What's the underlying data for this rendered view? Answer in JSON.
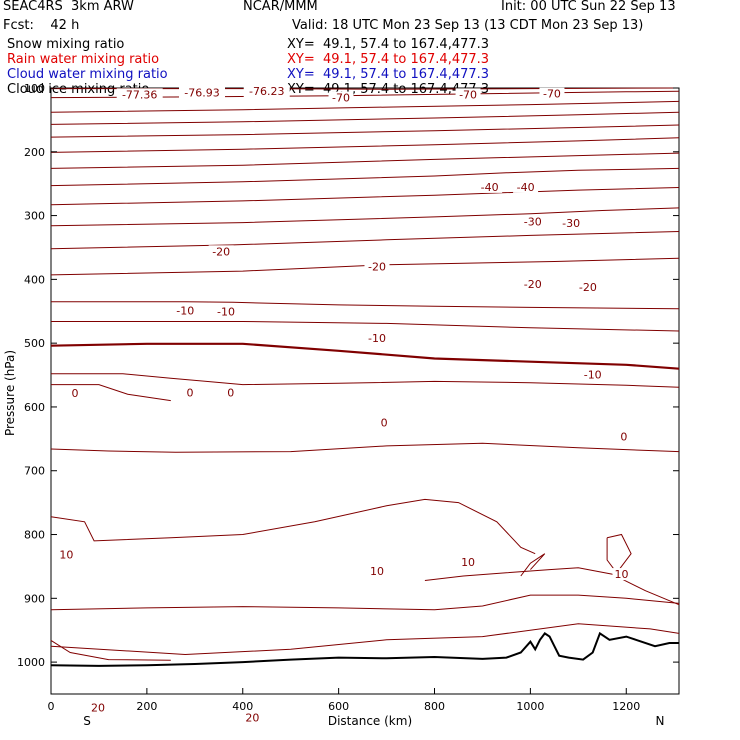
{
  "header": {
    "model": "SEAC4RS  3km ARW",
    "org": "NCAR/MMM",
    "init": "Init: 00 UTC Sun 22 Sep 13",
    "fcst": "Fcst:    42 h",
    "valid": "Valid: 18 UTC Mon 23 Sep 13 (13 CDT Mon 23 Sep 13)"
  },
  "legend": [
    {
      "label": "Snow mixing ratio",
      "xy": "XY=  49.1, 57.4 to 167.4,477.3",
      "color": "#000000"
    },
    {
      "label": "Rain water mixing ratio",
      "xy": "XY=  49.1, 57.4 to 167.4,477.3",
      "color": "#e00000"
    },
    {
      "label": "Cloud water mixing ratio",
      "xy": "XY=  49.1, 57.4 to 167.4,477.3",
      "color": "#1010c0"
    },
    {
      "label": "Cloud ice mixing ratio",
      "xy": "XY=  49.1, 57.4 to 167.4,477.3",
      "color": "#000000"
    }
  ],
  "chart_data": {
    "type": "line",
    "xlabel": "Distance (km)",
    "ylabel": "Pressure (hPa)",
    "xlim": [
      0,
      1310
    ],
    "ylim": [
      1050,
      100
    ],
    "x_ticks": [
      0,
      200,
      400,
      600,
      800,
      1000,
      1200
    ],
    "y_ticks": [
      100,
      200,
      300,
      400,
      500,
      600,
      700,
      800,
      900,
      1000
    ],
    "y_tick_labels": [
      "100",
      "200",
      "300",
      "400",
      "500",
      "600",
      "700",
      "800",
      "900",
      "1000"
    ],
    "end_labels": {
      "left": "S",
      "right": "N"
    },
    "colors": {
      "temperature": "#800000",
      "terrain": "#000000"
    },
    "isotherm_labels": [
      {
        "text": "-77.36",
        "x": 185,
        "y": 110
      },
      {
        "text": "-76.93",
        "x": 315,
        "y": 107
      },
      {
        "text": "-76.23",
        "x": 450,
        "y": 105
      },
      {
        "text": "-70",
        "x": 605,
        "y": 115
      },
      {
        "text": "-70",
        "x": 870,
        "y": 110
      },
      {
        "text": "-70",
        "x": 1045,
        "y": 109
      },
      {
        "text": "-40",
        "x": 915,
        "y": 255
      },
      {
        "text": "-40",
        "x": 990,
        "y": 255
      },
      {
        "text": "-30",
        "x": 1005,
        "y": 309
      },
      {
        "text": "-30",
        "x": 1085,
        "y": 312
      },
      {
        "text": "-20",
        "x": 355,
        "y": 356
      },
      {
        "text": "-20",
        "x": 680,
        "y": 380
      },
      {
        "text": "-20",
        "x": 1005,
        "y": 407
      },
      {
        "text": "-20",
        "x": 1120,
        "y": 412
      },
      {
        "text": "-10",
        "x": 280,
        "y": 449
      },
      {
        "text": "-10",
        "x": 365,
        "y": 450
      },
      {
        "text": "-10",
        "x": 680,
        "y": 492
      },
      {
        "text": "-10",
        "x": 1130,
        "y": 549
      },
      {
        "text": "0",
        "x": 50,
        "y": 578
      },
      {
        "text": "0",
        "x": 290,
        "y": 577
      },
      {
        "text": "0",
        "x": 375,
        "y": 577
      },
      {
        "text": "0",
        "x": 695,
        "y": 624
      },
      {
        "text": "0",
        "x": 1195,
        "y": 646
      },
      {
        "text": "10",
        "x": 32,
        "y": 831
      },
      {
        "text": "10",
        "x": 680,
        "y": 857
      },
      {
        "text": "10",
        "x": 870,
        "y": 843
      },
      {
        "text": "10",
        "x": 1190,
        "y": 862
      },
      {
        "text": "20",
        "x": 98,
        "y": 1071
      },
      {
        "text": "20",
        "x": 420,
        "y": 1087
      }
    ],
    "isotherms": [
      {
        "label": "-77",
        "points": [
          [
            0,
            101
          ],
          [
            400,
            101
          ],
          [
            700,
            102
          ],
          [
            1000,
            101
          ],
          [
            1310,
            100
          ]
        ]
      },
      {
        "label": "-70",
        "points": [
          [
            0,
            115
          ],
          [
            300,
            114
          ],
          [
            600,
            112
          ],
          [
            900,
            109
          ],
          [
            1200,
            106
          ],
          [
            1310,
            105
          ]
        ]
      },
      {
        "label": "",
        "points": [
          [
            0,
            138
          ],
          [
            400,
            134
          ],
          [
            700,
            130
          ],
          [
            1000,
            126
          ],
          [
            1310,
            121
          ]
        ]
      },
      {
        "label": "",
        "points": [
          [
            0,
            157
          ],
          [
            400,
            153
          ],
          [
            800,
            147
          ],
          [
            1100,
            142
          ],
          [
            1310,
            138
          ]
        ]
      },
      {
        "label": "",
        "points": [
          [
            0,
            177
          ],
          [
            400,
            173
          ],
          [
            800,
            167
          ],
          [
            1100,
            162
          ],
          [
            1310,
            158
          ]
        ]
      },
      {
        "label": "",
        "points": [
          [
            0,
            201
          ],
          [
            400,
            196
          ],
          [
            800,
            189
          ],
          [
            1100,
            183
          ],
          [
            1310,
            178
          ]
        ]
      },
      {
        "label": "",
        "points": [
          [
            0,
            226
          ],
          [
            400,
            221
          ],
          [
            800,
            212
          ],
          [
            1100,
            206
          ],
          [
            1310,
            202
          ]
        ]
      },
      {
        "label": "-40",
        "points": [
          [
            0,
            253
          ],
          [
            400,
            247
          ],
          [
            800,
            238
          ],
          [
            950,
            233
          ],
          [
            1100,
            229
          ],
          [
            1310,
            226
          ]
        ]
      },
      {
        "label": "",
        "points": [
          [
            0,
            283
          ],
          [
            400,
            277
          ],
          [
            800,
            268
          ],
          [
            1100,
            260
          ],
          [
            1310,
            256
          ]
        ]
      },
      {
        "label": "-30",
        "points": [
          [
            0,
            316
          ],
          [
            400,
            311
          ],
          [
            800,
            302
          ],
          [
            1000,
            297
          ],
          [
            1150,
            292
          ],
          [
            1310,
            288
          ]
        ]
      },
      {
        "label": "-20",
        "points": [
          [
            0,
            352
          ],
          [
            380,
            346
          ],
          [
            700,
            338
          ],
          [
            1000,
            331
          ],
          [
            1310,
            325
          ]
        ]
      },
      {
        "label": "-20",
        "points": [
          [
            0,
            393
          ],
          [
            400,
            387
          ],
          [
            700,
            377
          ],
          [
            1050,
            372
          ],
          [
            1310,
            367
          ]
        ]
      },
      {
        "label": "-10",
        "points": [
          [
            0,
            435
          ],
          [
            280,
            435
          ],
          [
            380,
            436
          ],
          [
            600,
            440
          ],
          [
            800,
            442
          ],
          [
            1000,
            444
          ],
          [
            1310,
            446
          ]
        ]
      },
      {
        "label": "-10",
        "points": [
          [
            0,
            466
          ],
          [
            400,
            466
          ],
          [
            700,
            469
          ],
          [
            1000,
            476
          ],
          [
            1310,
            481
          ]
        ]
      },
      {
        "label": "0",
        "bold": true,
        "points": [
          [
            0,
            504
          ],
          [
            200,
            501
          ],
          [
            400,
            501
          ],
          [
            600,
            512
          ],
          [
            800,
            524
          ],
          [
            1000,
            529
          ],
          [
            1200,
            534
          ],
          [
            1310,
            540
          ]
        ]
      },
      {
        "label": "",
        "points": [
          [
            0,
            548
          ],
          [
            150,
            548
          ],
          [
            250,
            555
          ],
          [
            400,
            565
          ],
          [
            600,
            563
          ],
          [
            800,
            560
          ],
          [
            1000,
            562
          ],
          [
            1200,
            566
          ],
          [
            1310,
            569
          ]
        ]
      },
      {
        "label": "10",
        "points": [
          [
            0,
            666
          ],
          [
            120,
            669
          ],
          [
            260,
            671
          ],
          [
            500,
            670
          ],
          [
            700,
            661
          ],
          [
            900,
            657
          ],
          [
            1100,
            664
          ],
          [
            1310,
            670
          ]
        ]
      },
      {
        "label": "",
        "points": [
          [
            0,
            772
          ],
          [
            70,
            780
          ],
          [
            90,
            810
          ],
          [
            250,
            805
          ],
          [
            400,
            800
          ],
          [
            550,
            780
          ],
          [
            700,
            755
          ],
          [
            780,
            745
          ],
          [
            850,
            750
          ],
          [
            930,
            780
          ],
          [
            980,
            820
          ],
          [
            1010,
            830
          ]
        ]
      },
      {
        "label": "",
        "points": [
          [
            1000,
            855
          ],
          [
            1030,
            830
          ],
          [
            1000,
            845
          ],
          [
            980,
            865
          ]
        ]
      },
      {
        "label": "",
        "points": [
          [
            1160,
            805
          ],
          [
            1190,
            800
          ],
          [
            1210,
            830
          ],
          [
            1180,
            860
          ],
          [
            1160,
            840
          ],
          [
            1160,
            805
          ]
        ]
      },
      {
        "label": "",
        "points": [
          [
            780,
            872
          ],
          [
            860,
            865
          ],
          [
            950,
            860
          ],
          [
            1040,
            855
          ],
          [
            1100,
            852
          ],
          [
            1170,
            862
          ],
          [
            1240,
            888
          ],
          [
            1310,
            910
          ]
        ]
      },
      {
        "label": "20",
        "points": [
          [
            0,
            918
          ],
          [
            200,
            915
          ],
          [
            400,
            913
          ],
          [
            600,
            915
          ],
          [
            800,
            918
          ],
          [
            900,
            912
          ],
          [
            1000,
            895
          ],
          [
            1100,
            895
          ],
          [
            1200,
            900
          ],
          [
            1310,
            908
          ]
        ]
      },
      {
        "label": "",
        "points": [
          [
            0,
            918
          ],
          [
            0,
            918
          ]
        ]
      },
      {
        "label": "20",
        "points": [
          [
            0,
            975
          ],
          [
            280,
            988
          ],
          [
            500,
            980
          ],
          [
            700,
            965
          ],
          [
            900,
            960
          ],
          [
            1100,
            940
          ],
          [
            1250,
            948
          ],
          [
            1310,
            955
          ]
        ]
      }
    ],
    "extra_isotherms_left": [
      {
        "label": "",
        "points": [
          [
            0,
            565
          ],
          [
            100,
            565
          ],
          [
            160,
            580
          ],
          [
            250,
            590
          ]
        ]
      },
      {
        "label": "",
        "points": [
          [
            0,
            966
          ],
          [
            40,
            985
          ],
          [
            120,
            996
          ],
          [
            250,
            997
          ]
        ]
      }
    ],
    "terrain": [
      [
        0,
        1005
      ],
      [
        100,
        1006
      ],
      [
        200,
        1005
      ],
      [
        300,
        1003
      ],
      [
        400,
        1000
      ],
      [
        500,
        996
      ],
      [
        600,
        993
      ],
      [
        700,
        994
      ],
      [
        800,
        992
      ],
      [
        900,
        995
      ],
      [
        950,
        993
      ],
      [
        980,
        985
      ],
      [
        1000,
        968
      ],
      [
        1010,
        980
      ],
      [
        1020,
        965
      ],
      [
        1030,
        955
      ],
      [
        1040,
        960
      ],
      [
        1050,
        975
      ],
      [
        1060,
        990
      ],
      [
        1080,
        993
      ],
      [
        1110,
        996
      ],
      [
        1130,
        985
      ],
      [
        1145,
        955
      ],
      [
        1165,
        965
      ],
      [
        1200,
        960
      ],
      [
        1220,
        965
      ],
      [
        1260,
        975
      ],
      [
        1290,
        970
      ],
      [
        1310,
        970
      ]
    ]
  }
}
